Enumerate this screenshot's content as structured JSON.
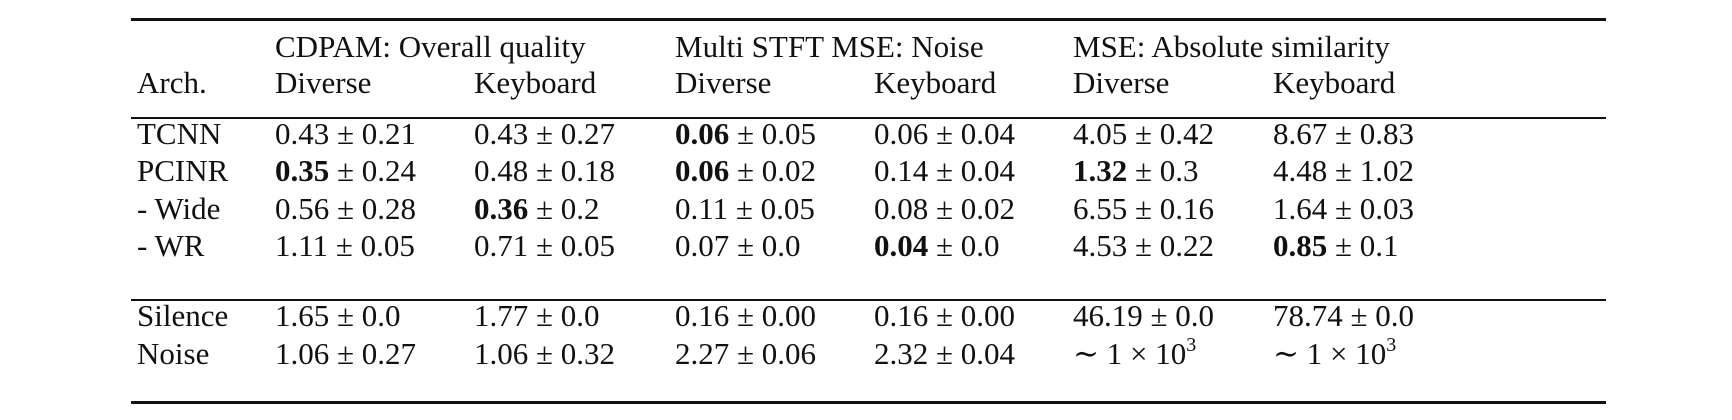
{
  "table": {
    "arch_header": "Arch.",
    "groups": [
      {
        "label": "CDPAM: Overall quality",
        "subcols": [
          "Diverse",
          "Keyboard"
        ]
      },
      {
        "label": "Multi STFT MSE: Noise",
        "subcols": [
          "Diverse",
          "Keyboard"
        ]
      },
      {
        "label": "MSE: Absolute similarity",
        "subcols": [
          "Diverse",
          "Keyboard"
        ]
      }
    ],
    "rows_main": [
      {
        "arch": "TCNN",
        "cells": [
          {
            "mean": "0.43",
            "pm": "± 0.21",
            "bold": false
          },
          {
            "mean": "0.43",
            "pm": "± 0.27",
            "bold": false
          },
          {
            "mean": "0.06",
            "pm": "± 0.05",
            "bold": true
          },
          {
            "mean": "0.06",
            "pm": "± 0.04",
            "bold": false
          },
          {
            "mean": "4.05",
            "pm": "± 0.42",
            "bold": false
          },
          {
            "mean": "8.67",
            "pm": "± 0.83",
            "bold": false
          }
        ]
      },
      {
        "arch": "PCINR",
        "cells": [
          {
            "mean": "0.35",
            "pm": "± 0.24",
            "bold": true
          },
          {
            "mean": "0.48",
            "pm": "± 0.18",
            "bold": false
          },
          {
            "mean": "0.06",
            "pm": "± 0.02",
            "bold": true
          },
          {
            "mean": "0.14",
            "pm": "± 0.04",
            "bold": false
          },
          {
            "mean": "1.32",
            "pm": "± 0.3",
            "bold": true
          },
          {
            "mean": "4.48",
            "pm": "± 1.02",
            "bold": false
          }
        ]
      },
      {
        "arch": "- Wide",
        "cells": [
          {
            "mean": "0.56",
            "pm": "± 0.28",
            "bold": false
          },
          {
            "mean": "0.36",
            "pm": "± 0.2",
            "bold": true
          },
          {
            "mean": "0.11",
            "pm": "± 0.05",
            "bold": false
          },
          {
            "mean": "0.08",
            "pm": "± 0.02",
            "bold": false
          },
          {
            "mean": "6.55",
            "pm": "± 0.16",
            "bold": false
          },
          {
            "mean": "1.64",
            "pm": "± 0.03",
            "bold": false
          }
        ]
      },
      {
        "arch": "- WR",
        "cells": [
          {
            "mean": "1.11",
            "pm": "± 0.05",
            "bold": false
          },
          {
            "mean": "0.71",
            "pm": "± 0.05",
            "bold": false
          },
          {
            "mean": "0.07",
            "pm": "± 0.0",
            "bold": false
          },
          {
            "mean": "0.04",
            "pm": "± 0.0",
            "bold": true
          },
          {
            "mean": "4.53",
            "pm": "± 0.22",
            "bold": false
          },
          {
            "mean": "0.85",
            "pm": "± 0.1",
            "bold": true
          }
        ]
      }
    ],
    "rows_baseline": [
      {
        "arch": "Silence",
        "cells": [
          {
            "mean": "1.65",
            "pm": "± 0.0",
            "bold": false
          },
          {
            "mean": "1.77",
            "pm": "± 0.0",
            "bold": false
          },
          {
            "mean": "0.16",
            "pm": "± 0.00",
            "bold": false
          },
          {
            "mean": "0.16",
            "pm": "± 0.00",
            "bold": false
          },
          {
            "mean": "46.19",
            "pm": "± 0.0",
            "bold": false
          },
          {
            "mean": "78.74",
            "pm": "± 0.0",
            "bold": false
          }
        ]
      },
      {
        "arch": "Noise",
        "cells": [
          {
            "mean": "1.06",
            "pm": "± 0.27",
            "bold": false
          },
          {
            "mean": "1.06",
            "pm": "± 0.32",
            "bold": false
          },
          {
            "mean": "2.27",
            "pm": "± 0.06",
            "bold": false
          },
          {
            "mean": "2.32",
            "pm": "± 0.04",
            "bold": false
          },
          {
            "mean": "∼ 1 × 10",
            "pm": "",
            "exp": "3",
            "bold": false
          },
          {
            "mean": "∼ 1 × 10",
            "pm": "",
            "exp": "3",
            "bold": false
          }
        ]
      }
    ]
  }
}
